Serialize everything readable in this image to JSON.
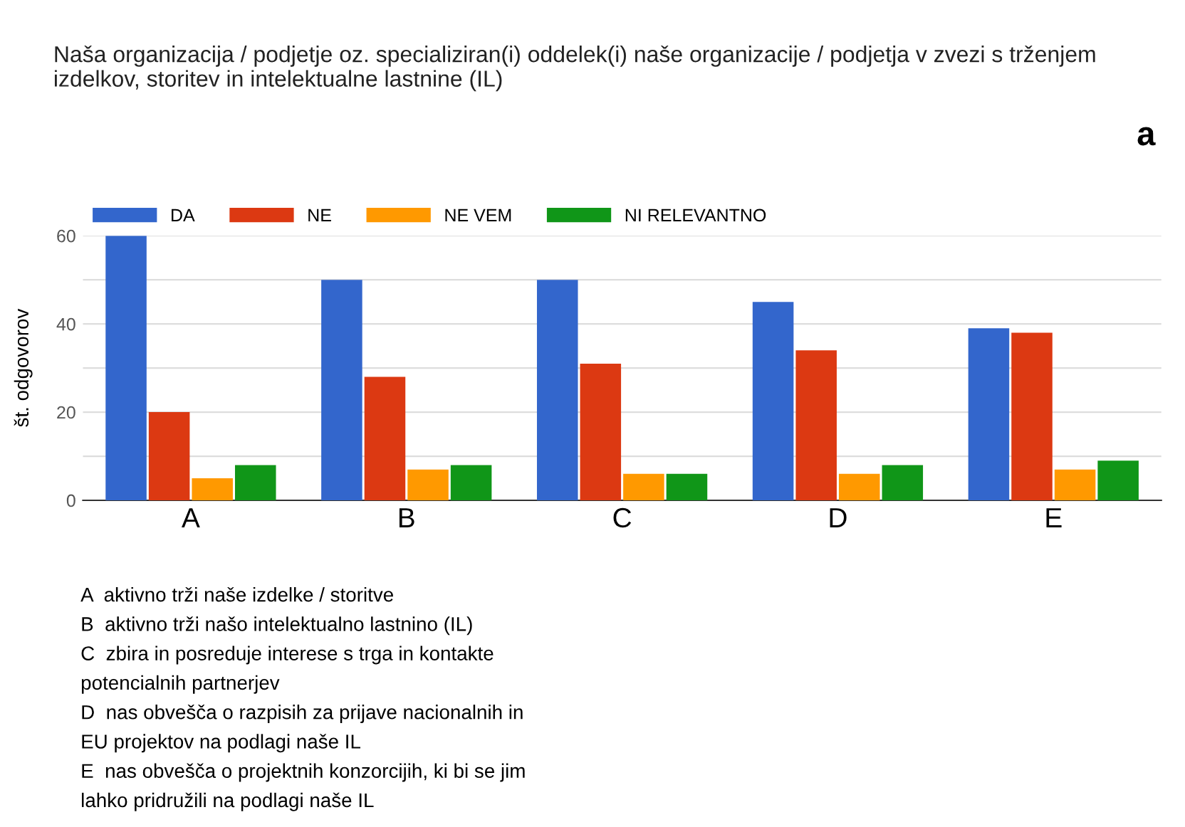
{
  "chart_data": {
    "type": "bar",
    "title": "Naša organizacija / podjetje oz. specializiran(i) oddelek(i) naše organizacije / podjetja v zvezi s trženjem izdelkov, storitev in intelektualne lastnine (IL)",
    "ylabel": "št. odgovorov",
    "categories": [
      "A",
      "B",
      "C",
      "D",
      "E"
    ],
    "series": [
      {
        "name": "DA",
        "color": "#3366cc",
        "values": [
          60,
          50,
          50,
          45,
          39
        ]
      },
      {
        "name": "NE",
        "color": "#dc3912",
        "values": [
          20,
          28,
          31,
          34,
          38
        ]
      },
      {
        "name": "NE VEM",
        "color": "#ff9900",
        "values": [
          5,
          7,
          6,
          6,
          7
        ]
      },
      {
        "name": "NI RELEVANTNO",
        "color": "#109618",
        "values": [
          8,
          8,
          6,
          8,
          9
        ]
      }
    ],
    "ylim": [
      0,
      60
    ],
    "yticks": [
      0,
      {
        "value": 10,
        "label": null
      },
      20,
      {
        "value": 30,
        "label": null
      },
      40,
      {
        "value": 50,
        "label": null
      },
      60
    ],
    "grid": "y",
    "legend": "top left",
    "annotations": [
      "a",
      "A  aktivno trži naše izdelke / storitve",
      "B  aktivno trži našo intelektualno lastnino (IL)",
      "C  zbira in posreduje interese s trga in kontakte",
      "potencialnih partnerjev",
      "D  nas obvešča o razpisih za prijave nacionalnih in",
      "EU projektov na podlagi naše IL",
      "E  nas obvešča o projektnih konzorcijih, ki bi se jim",
      "lahko pridružili na podlagi naše IL"
    ]
  }
}
